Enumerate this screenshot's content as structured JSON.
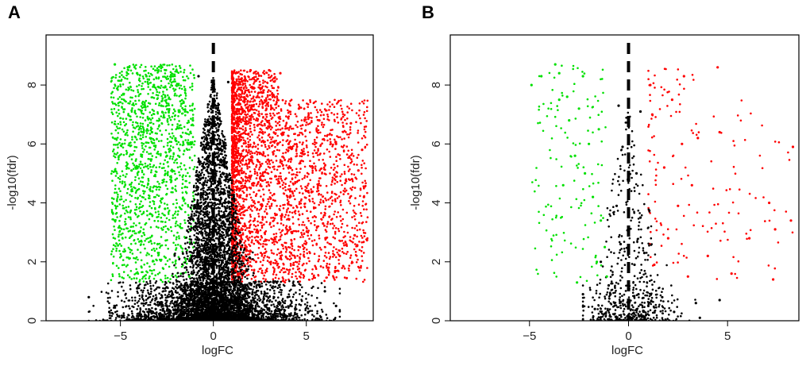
{
  "figure": {
    "panels": [
      "A",
      "B"
    ]
  },
  "colors": {
    "up": "#ff0000",
    "down": "#00e000",
    "not_significant": "#000000",
    "threshold_line": "#000000"
  },
  "chart_data": [
    {
      "panel": "A",
      "type": "scatter",
      "subtype": "volcano",
      "title": "",
      "xlabel": "logFC",
      "ylabel": "-log10(fdr)",
      "xlim": [
        -9,
        8.6
      ],
      "ylim": [
        0,
        9.7
      ],
      "x_ticks": [
        -5,
        0,
        5
      ],
      "y_ticks": [
        0,
        2,
        4,
        6,
        8
      ],
      "grid": false,
      "legend": "none",
      "threshold_line": {
        "x": 0,
        "style": "dashed"
      },
      "fc_threshold": 1,
      "significance_floor": 1.3,
      "groups": [
        {
          "name": "down",
          "color": "#00e000",
          "approx_count": 1400,
          "x_range": [
            -5.5,
            -1
          ],
          "y_range": [
            1.3,
            8.7
          ]
        },
        {
          "name": "up",
          "color": "#ff0000",
          "approx_count": 3000,
          "x_range": [
            1,
            8.3
          ],
          "y_range": [
            1.3,
            8.5
          ]
        },
        {
          "name": "not_significant",
          "color": "#000000",
          "approx_count": 6000,
          "x_range": [
            -6.7,
            6.8
          ],
          "y_range": [
            0,
            8.5
          ]
        }
      ],
      "points": {
        "down": [
          [
            -5.3,
            8.7
          ],
          [
            -4.6,
            8.6
          ],
          [
            -4.1,
            8.4
          ],
          [
            -3.6,
            8.3
          ],
          [
            -3.2,
            8.0
          ],
          [
            -4.9,
            6.0
          ],
          [
            -4.4,
            5.1
          ],
          [
            -4.0,
            3.0
          ],
          [
            -3.3,
            6.4
          ],
          [
            -2.8,
            7.3
          ],
          [
            -2.5,
            5.6
          ],
          [
            -2.2,
            4.5
          ],
          [
            -1.8,
            3.2
          ],
          [
            -1.5,
            2.1
          ],
          [
            -1.3,
            1.5
          ],
          [
            -1.1,
            6.8
          ],
          [
            -1.6,
            7.4
          ],
          [
            -2.0,
            6.1
          ],
          [
            -2.6,
            3.8
          ],
          [
            -3.0,
            2.6
          ]
        ],
        "up": [
          [
            1.2,
            8.4
          ],
          [
            1.5,
            7.6
          ],
          [
            2.0,
            8.5
          ],
          [
            2.6,
            7.9
          ],
          [
            3.0,
            8.5
          ],
          [
            3.6,
            8.4
          ],
          [
            4.6,
            7.2
          ],
          [
            5.7,
            6.8
          ],
          [
            6.6,
            6.0
          ],
          [
            7.4,
            6.7
          ],
          [
            7.8,
            5.1
          ],
          [
            8.1,
            4.2
          ],
          [
            7.6,
            2.9
          ],
          [
            6.8,
            2.2
          ],
          [
            5.9,
            3.3
          ],
          [
            5.0,
            4.4
          ],
          [
            4.2,
            2.6
          ],
          [
            3.4,
            3.6
          ],
          [
            2.3,
            2.0
          ],
          [
            1.4,
            1.6
          ],
          [
            8.0,
            5.8
          ],
          [
            6.2,
            1.8
          ]
        ],
        "not_significant": [
          [
            -6.7,
            0.8
          ],
          [
            -5.6,
            0.3
          ],
          [
            -4.1,
            1.1
          ],
          [
            -3.1,
            0.4
          ],
          [
            -2.2,
            0.9
          ],
          [
            -1.6,
            0.2
          ],
          [
            -0.8,
            8.3
          ],
          [
            -0.6,
            6.2
          ],
          [
            -0.4,
            2.4
          ],
          [
            -0.2,
            1.1
          ],
          [
            0.2,
            0.7
          ],
          [
            0.4,
            1.6
          ],
          [
            0.6,
            5.3
          ],
          [
            0.8,
            8.1
          ],
          [
            1.3,
            0.6
          ],
          [
            2.1,
            0.9
          ],
          [
            3.0,
            0.4
          ],
          [
            4.0,
            0.8
          ],
          [
            5.1,
            0.3
          ],
          [
            6.0,
            1.0
          ],
          [
            6.6,
            0.5
          ]
        ]
      }
    },
    {
      "panel": "B",
      "type": "scatter",
      "subtype": "volcano",
      "title": "",
      "xlabel": "logFC",
      "ylabel": "-log10(fdr)",
      "xlim": [
        -9,
        8.6
      ],
      "ylim": [
        0,
        9.7
      ],
      "x_ticks": [
        -5,
        0,
        5
      ],
      "y_ticks": [
        0,
        2,
        4,
        6,
        8
      ],
      "grid": false,
      "legend": "none",
      "threshold_line": {
        "x": 0,
        "style": "dashed"
      },
      "fc_threshold": 1,
      "significance_floor": 1.3,
      "groups": [
        {
          "name": "down",
          "color": "#00e000",
          "approx_count": 130,
          "x_range": [
            -4.9,
            -1
          ],
          "y_range": [
            1.3,
            8.7
          ]
        },
        {
          "name": "up",
          "color": "#ff0000",
          "approx_count": 140,
          "x_range": [
            1,
            8.3
          ],
          "y_range": [
            1.3,
            8.6
          ]
        },
        {
          "name": "not_significant",
          "color": "#000000",
          "approx_count": 600,
          "x_range": [
            -2.3,
            4.6
          ],
          "y_range": [
            0,
            7.3
          ]
        }
      ],
      "points": {
        "down": [
          [
            -4.9,
            8.0
          ],
          [
            -4.4,
            8.3
          ],
          [
            -3.7,
            8.7
          ],
          [
            -3.5,
            8.4
          ],
          [
            -3.1,
            7.6
          ],
          [
            -2.5,
            7.2
          ],
          [
            -2.3,
            8.3
          ],
          [
            -1.5,
            6.5
          ],
          [
            -3.0,
            6.8
          ],
          [
            -2.7,
            5.6
          ],
          [
            -2.2,
            5.0
          ],
          [
            -3.3,
            4.6
          ],
          [
            -1.8,
            4.2
          ],
          [
            -1.4,
            3.4
          ],
          [
            -1.2,
            2.5
          ],
          [
            -1.6,
            2.0
          ],
          [
            -2.6,
            1.3
          ],
          [
            -1.1,
            1.5
          ],
          [
            -3.5,
            7.5
          ],
          [
            -2.0,
            6.0
          ]
        ],
        "up": [
          [
            1.1,
            8.0
          ],
          [
            1.2,
            7.0
          ],
          [
            2.2,
            7.5
          ],
          [
            2.8,
            8.3
          ],
          [
            4.5,
            8.6
          ],
          [
            8.3,
            5.9
          ],
          [
            3.5,
            6.2
          ],
          [
            4.6,
            6.4
          ],
          [
            2.7,
            6.0
          ],
          [
            1.8,
            5.2
          ],
          [
            3.2,
            4.6
          ],
          [
            2.5,
            3.9
          ],
          [
            7.1,
            4.0
          ],
          [
            7.4,
            3.1
          ],
          [
            8.2,
            3.4
          ],
          [
            6.1,
            2.8
          ],
          [
            5.2,
            1.6
          ],
          [
            7.3,
            1.4
          ],
          [
            4.0,
            2.2
          ],
          [
            2.0,
            2.8
          ],
          [
            1.3,
            1.9
          ],
          [
            3.0,
            1.5
          ]
        ],
        "not_significant": [
          [
            -0.5,
            7.3
          ],
          [
            0.6,
            7.1
          ],
          [
            -0.3,
            5.9
          ],
          [
            0.4,
            5.0
          ],
          [
            -0.6,
            3.9
          ],
          [
            0.6,
            3.5
          ],
          [
            -0.4,
            2.6
          ],
          [
            0.3,
            1.9
          ],
          [
            -2.3,
            0.9
          ],
          [
            -1.7,
            0.4
          ],
          [
            -1.0,
            1.2
          ],
          [
            -0.7,
            0.6
          ],
          [
            0.0,
            0.2
          ],
          [
            0.5,
            0.9
          ],
          [
            1.0,
            0.5
          ],
          [
            1.7,
            0.8
          ],
          [
            2.3,
            0.3
          ],
          [
            3.4,
            0.6
          ],
          [
            3.6,
            0.1
          ],
          [
            4.6,
            0.7
          ],
          [
            -1.4,
            2.0
          ],
          [
            0.8,
            2.3
          ]
        ]
      }
    }
  ]
}
